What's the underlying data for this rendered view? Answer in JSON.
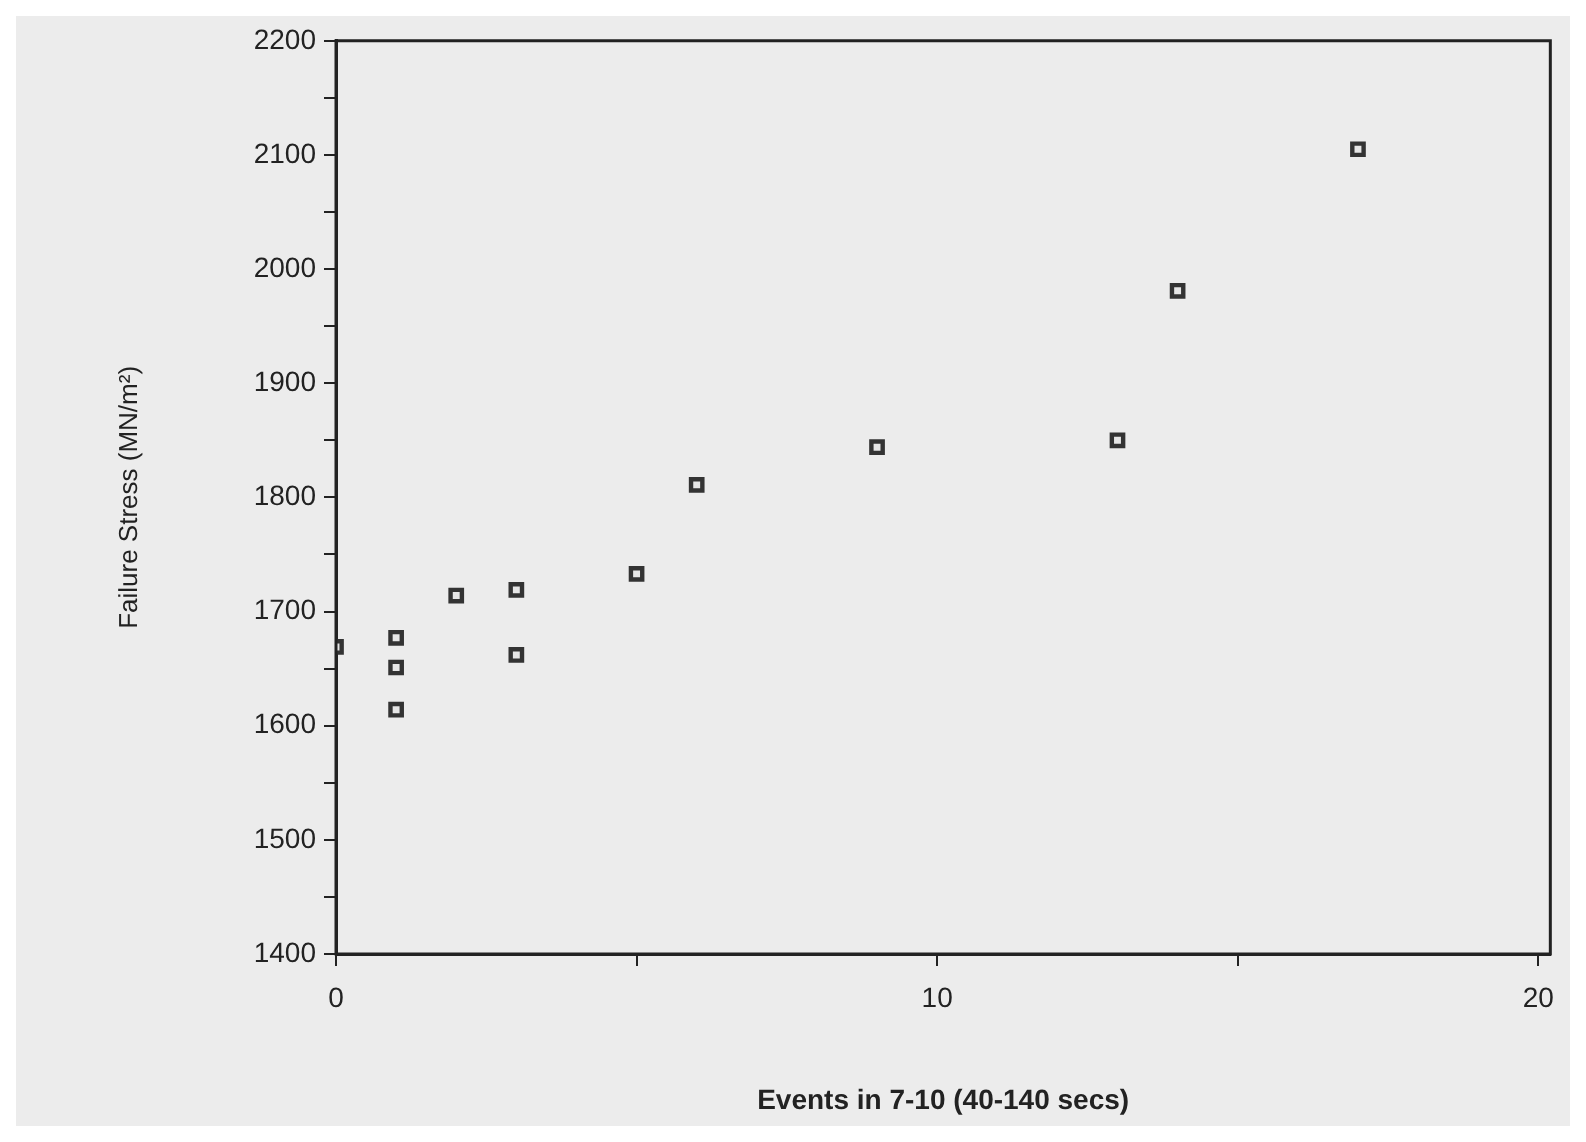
{
  "chart_data": {
    "type": "scatter",
    "xlabel": "Events in 7-10 (40-140 secs)",
    "ylabel": "Failure Stress (MN/m²)",
    "x": [
      0,
      1,
      1,
      1,
      2,
      3,
      3,
      5,
      6,
      9,
      13,
      14,
      17
    ],
    "series": [
      {
        "color": "#333333",
        "values": [
          1669,
          1677,
          1651,
          1614,
          1714,
          1719,
          1662,
          1733,
          1811,
          1844,
          1850,
          1981,
          2105
        ]
      }
    ],
    "xlim": [
      0,
      20.2
    ],
    "xticks": [
      0,
      {
        "value": 5,
        "label": null
      },
      10,
      {
        "value": 15,
        "label": null
      },
      20
    ],
    "ylim": [
      1400,
      2200
    ],
    "yticks": [
      1400,
      {
        "value": 1450,
        "label": null
      },
      1500,
      {
        "value": 1550,
        "label": null
      },
      1600,
      {
        "value": 1650,
        "label": null
      },
      1700,
      {
        "value": 1750,
        "label": null
      },
      1800,
      {
        "value": 1850,
        "label": null
      },
      1900,
      {
        "value": 1950,
        "label": null
      },
      2000,
      {
        "value": 2050,
        "label": null
      },
      2100,
      {
        "value": 2150,
        "label": null
      },
      2200
    ],
    "marker": "square",
    "grid": false,
    "legend": false
  }
}
